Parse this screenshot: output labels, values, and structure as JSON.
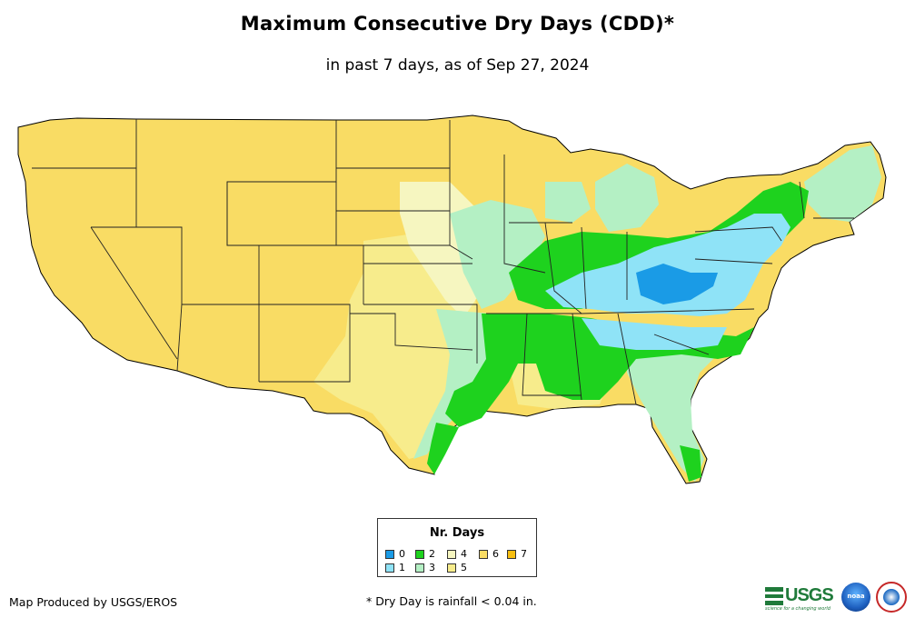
{
  "header": {
    "title": "Maximum Consecutive Dry Days (CDD)*",
    "subtitle": "in past 7 days, as of Sep 27, 2024"
  },
  "legend": {
    "title": "Nr. Days",
    "items": [
      {
        "label": "0",
        "color": "#1a9be6"
      },
      {
        "label": "1",
        "color": "#8fe3f7"
      },
      {
        "label": "2",
        "color": "#1ed21e"
      },
      {
        "label": "3",
        "color": "#b4f0c4"
      },
      {
        "label": "4",
        "color": "#f6f6c0"
      },
      {
        "label": "5",
        "color": "#f7ec8c"
      },
      {
        "label": "6",
        "color": "#f9dc64"
      },
      {
        "label": "7",
        "color": "#f7be0f"
      }
    ]
  },
  "map": {
    "description_regions": [
      {
        "region": "west",
        "days": "6"
      },
      {
        "region": "plains",
        "days": "5"
      },
      {
        "region": "upper-midwest",
        "days": "3"
      },
      {
        "region": "ohio-valley",
        "days": "1"
      },
      {
        "region": "southeast",
        "days": "2"
      },
      {
        "region": "northeast",
        "days": "3"
      }
    ]
  },
  "footer": {
    "producer": "Map Produced by USGS/EROS",
    "note": "* Dry Day is rainfall < 0.04 in."
  },
  "logos": {
    "usgs": "USGS",
    "usgs_tagline": "science for a changing world",
    "noaa": "noaa"
  }
}
